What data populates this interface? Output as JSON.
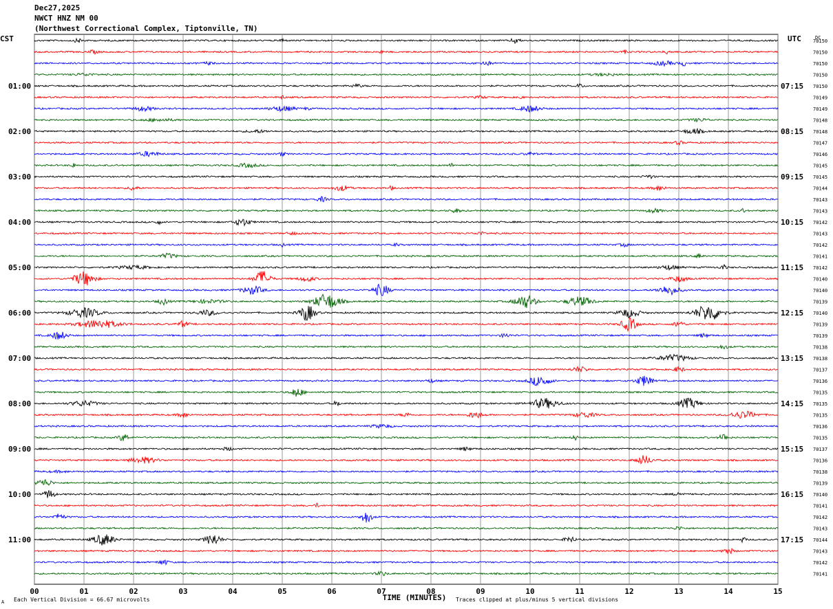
{
  "header": {
    "date": "Dec27,2025",
    "station": "NWCT HNZ NM 00",
    "location": "(Northwest Correctional Complex, Tiptonville, TN)"
  },
  "footer": {
    "scale_note": "Each Vertical Division =   66.67 microvolts",
    "clip_note": "Traces clipped at plus/minus 5 vertical divisions",
    "corner_mark": "A"
  },
  "chart_data": {
    "type": "helicorder",
    "xlabel": "TIME (MINUTES)",
    "x_ticks": [
      "00",
      "01",
      "02",
      "03",
      "04",
      "05",
      "06",
      "07",
      "08",
      "09",
      "10",
      "11",
      "12",
      "13",
      "14",
      "15"
    ],
    "xlim": [
      0,
      15
    ],
    "left_axis_label": "CST",
    "right_axis_label": "UTC",
    "dc_label": "DC",
    "trace_colors": [
      "#000000",
      "#ff0000",
      "#0000ff",
      "#006400"
    ],
    "left_hour_labels": [
      {
        "row": 4,
        "text": "01:00"
      },
      {
        "row": 8,
        "text": "02:00"
      },
      {
        "row": 12,
        "text": "03:00"
      },
      {
        "row": 16,
        "text": "04:00"
      },
      {
        "row": 20,
        "text": "05:00"
      },
      {
        "row": 24,
        "text": "06:00"
      },
      {
        "row": 28,
        "text": "07:00"
      },
      {
        "row": 32,
        "text": "08:00"
      },
      {
        "row": 36,
        "text": "09:00"
      },
      {
        "row": 40,
        "text": "10:00"
      },
      {
        "row": 44,
        "text": "11:00"
      }
    ],
    "right_hour_labels": [
      {
        "row": 4,
        "text": "07:15"
      },
      {
        "row": 8,
        "text": "08:15"
      },
      {
        "row": 12,
        "text": "09:15"
      },
      {
        "row": 16,
        "text": "10:15"
      },
      {
        "row": 20,
        "text": "11:15"
      },
      {
        "row": 24,
        "text": "12:15"
      },
      {
        "row": 28,
        "text": "13:15"
      },
      {
        "row": 32,
        "text": "14:15"
      },
      {
        "row": 36,
        "text": "15:15"
      },
      {
        "row": 40,
        "text": "16:15"
      },
      {
        "row": 44,
        "text": "17:15"
      }
    ],
    "dc_offsets": [
      70150,
      70150,
      70150,
      70150,
      70150,
      70149,
      70149,
      70148,
      70148,
      70147,
      70146,
      70145,
      70145,
      70144,
      70143,
      70143,
      70142,
      70143,
      70142,
      70141,
      70142,
      70140,
      70140,
      70139,
      70140,
      70139,
      70139,
      70138,
      70138,
      70137,
      70136,
      70135,
      70135,
      70135,
      70136,
      70135,
      70137,
      70136,
      70138,
      70139,
      70140,
      70141,
      70142,
      70143,
      70144,
      70143,
      70142,
      70141
    ],
    "events": [
      [
        [
          0.9,
          0.35,
          0.1
        ],
        [
          5.0,
          0.4,
          0.05
        ],
        [
          9.7,
          0.55,
          0.08
        ]
      ],
      [
        [
          1.2,
          0.3,
          0.1
        ],
        [
          7.0,
          0.3,
          0.04
        ],
        [
          11.9,
          0.3,
          0.06
        ],
        [
          12.8,
          0.4,
          0.08
        ]
      ],
      [
        [
          3.5,
          0.25,
          0.1
        ],
        [
          9.1,
          0.35,
          0.15
        ],
        [
          13.1,
          0.5,
          0.06
        ],
        [
          12.7,
          0.4,
          0.2
        ]
      ],
      [
        [
          1.0,
          0.2,
          0.2
        ],
        [
          11.5,
          0.2,
          0.25
        ]
      ],
      [
        [
          6.5,
          0.3,
          0.1
        ],
        [
          11.0,
          0.4,
          0.06
        ]
      ],
      [
        [
          5.0,
          0.35,
          0.05
        ],
        [
          9.0,
          0.25,
          0.1
        ],
        [
          9.8,
          0.3,
          0.05
        ]
      ],
      [
        [
          2.2,
          0.4,
          0.2
        ],
        [
          5.0,
          0.45,
          0.25
        ],
        [
          10.0,
          0.6,
          0.2
        ],
        [
          5.5,
          0.3,
          0.05
        ]
      ],
      [
        [
          2.5,
          0.25,
          0.3
        ],
        [
          13.4,
          0.25,
          0.2
        ]
      ],
      [
        [
          4.5,
          0.25,
          0.2
        ],
        [
          13.3,
          0.45,
          0.2
        ]
      ],
      [
        [
          13.0,
          0.35,
          0.08
        ]
      ],
      [
        [
          2.3,
          0.45,
          0.2
        ],
        [
          5.0,
          0.4,
          0.06
        ],
        [
          10.0,
          0.25,
          0.1
        ]
      ],
      [
        [
          0.8,
          0.45,
          0.05
        ],
        [
          4.3,
          0.35,
          0.2
        ],
        [
          8.4,
          0.35,
          0.05
        ]
      ],
      [
        [
          12.4,
          0.3,
          0.1
        ]
      ],
      [
        [
          2.0,
          0.5,
          0.08
        ],
        [
          6.2,
          0.5,
          0.15
        ],
        [
          7.2,
          0.35,
          0.05
        ],
        [
          12.6,
          0.45,
          0.12
        ]
      ],
      [
        [
          5.8,
          0.45,
          0.1
        ]
      ],
      [
        [
          8.5,
          0.35,
          0.1
        ],
        [
          12.5,
          0.35,
          0.15
        ],
        [
          14.3,
          0.35,
          0.06
        ]
      ],
      [
        [
          2.5,
          0.4,
          0.06
        ],
        [
          4.2,
          0.7,
          0.15
        ]
      ],
      [
        [
          5.2,
          0.25,
          0.1
        ],
        [
          9.0,
          0.25,
          0.1
        ]
      ],
      [
        [
          5.0,
          0.35,
          0.05
        ],
        [
          7.3,
          0.3,
          0.05
        ],
        [
          11.9,
          0.35,
          0.08
        ]
      ],
      [
        [
          2.7,
          0.45,
          0.15
        ],
        [
          13.4,
          0.4,
          0.06
        ]
      ],
      [
        [
          2.0,
          0.3,
          0.3
        ],
        [
          12.8,
          0.4,
          0.2
        ],
        [
          13.9,
          0.5,
          0.06
        ]
      ],
      [
        [
          1.0,
          1.4,
          0.2
        ],
        [
          4.6,
          1.6,
          0.15
        ],
        [
          5.5,
          0.5,
          0.15
        ],
        [
          13.0,
          0.6,
          0.15
        ]
      ],
      [
        [
          4.4,
          0.8,
          0.2
        ],
        [
          7.0,
          1.2,
          0.15
        ],
        [
          12.8,
          0.9,
          0.2
        ]
      ],
      [
        [
          2.6,
          0.6,
          0.1
        ],
        [
          5.9,
          1.5,
          0.25
        ],
        [
          9.9,
          1.3,
          0.2
        ],
        [
          11.0,
          0.9,
          0.25
        ],
        [
          3.5,
          0.3,
          0.3
        ]
      ],
      [
        [
          1.0,
          0.9,
          0.3
        ],
        [
          5.5,
          1.6,
          0.15
        ],
        [
          3.5,
          0.5,
          0.2
        ],
        [
          12.0,
          0.9,
          0.2
        ],
        [
          13.6,
          1.7,
          0.25
        ]
      ],
      [
        [
          1.3,
          0.8,
          0.4
        ],
        [
          3.0,
          0.6,
          0.1
        ],
        [
          12.0,
          1.3,
          0.15
        ],
        [
          13.0,
          0.6,
          0.1
        ]
      ],
      [
        [
          0.5,
          0.8,
          0.15
        ],
        [
          9.5,
          0.35,
          0.1
        ],
        [
          13.5,
          0.35,
          0.1
        ]
      ],
      [
        [
          13.9,
          0.35,
          0.1
        ]
      ],
      [
        [
          12.9,
          0.6,
          0.3
        ]
      ],
      [
        [
          11.0,
          0.5,
          0.15
        ],
        [
          13.0,
          0.5,
          0.1
        ]
      ],
      [
        [
          10.2,
          1.0,
          0.2
        ],
        [
          12.3,
          1.0,
          0.15
        ],
        [
          8.0,
          0.3,
          0.1
        ]
      ],
      [
        [
          5.3,
          0.9,
          0.12
        ]
      ],
      [
        [
          1.0,
          0.5,
          0.25
        ],
        [
          6.1,
          0.5,
          0.06
        ],
        [
          10.3,
          1.0,
          0.25
        ],
        [
          13.2,
          1.0,
          0.2
        ]
      ],
      [
        [
          3.0,
          0.5,
          0.1
        ],
        [
          7.5,
          0.35,
          0.1
        ],
        [
          8.9,
          0.6,
          0.15
        ],
        [
          11.1,
          0.5,
          0.2
        ],
        [
          14.3,
          0.7,
          0.25
        ]
      ],
      [
        [
          7.0,
          0.3,
          0.2
        ]
      ],
      [
        [
          1.8,
          0.7,
          0.1
        ],
        [
          10.9,
          0.6,
          0.05
        ],
        [
          13.9,
          0.7,
          0.08
        ]
      ],
      [
        [
          8.7,
          0.3,
          0.1
        ],
        [
          3.9,
          0.3,
          0.1
        ]
      ],
      [
        [
          2.2,
          0.6,
          0.25
        ],
        [
          12.3,
          0.9,
          0.15
        ]
      ],
      [
        [
          0.5,
          0.15,
          0.2
        ]
      ],
      [
        [
          0.2,
          0.7,
          0.15
        ]
      ],
      [
        [
          0.3,
          0.9,
          0.1
        ],
        [
          13.0,
          0.3,
          0.1
        ]
      ],
      [
        [
          5.7,
          0.35,
          0.05
        ]
      ],
      [
        [
          0.5,
          0.6,
          0.1
        ],
        [
          6.7,
          1.2,
          0.1
        ]
      ],
      [
        [
          13.0,
          0.3,
          0.1
        ]
      ],
      [
        [
          1.4,
          1.1,
          0.2
        ],
        [
          3.6,
          1.1,
          0.15
        ],
        [
          10.8,
          0.6,
          0.1
        ],
        [
          14.3,
          0.5,
          0.05
        ]
      ],
      [
        [
          14.0,
          0.6,
          0.1
        ]
      ],
      [
        [
          2.6,
          0.5,
          0.1
        ]
      ],
      [
        [
          7.0,
          0.4,
          0.1
        ]
      ]
    ],
    "ylim": [
      -5,
      5
    ],
    "y_unit": "vertical divisions",
    "grid": "vertical lines each minute"
  }
}
